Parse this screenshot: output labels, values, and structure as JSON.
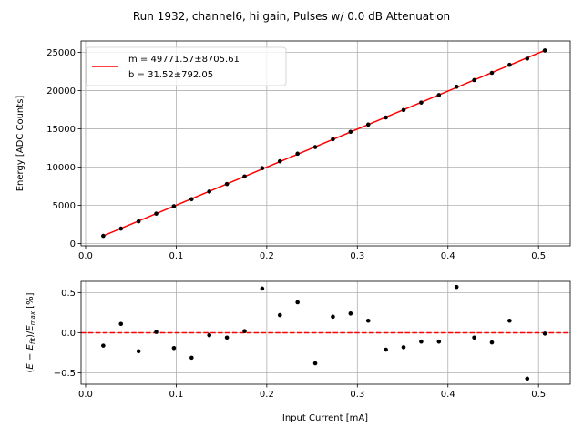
{
  "chart_data": [
    {
      "type": "scatter",
      "title": "Run 1932, channel6, hi gain, Pulses w/ 0.0 dB Attenuation",
      "xlabel": "",
      "ylabel": "Energy [ADC Counts]",
      "xlim": [
        -0.005,
        0.535
      ],
      "ylim": [
        -300,
        26500
      ],
      "xticks": [
        0.0,
        0.1,
        0.2,
        0.3,
        0.4,
        0.5
      ],
      "xtick_labels": [
        "0.0",
        "0.1",
        "0.2",
        "0.3",
        "0.4",
        "0.5"
      ],
      "yticks": [
        0,
        5000,
        10000,
        15000,
        20000,
        25000
      ],
      "ytick_labels": [
        "0",
        "5000",
        "10000",
        "15000",
        "20000",
        "25000"
      ],
      "grid": true,
      "legend_position": "top-left",
      "series": [
        {
          "name": "",
          "style": "points",
          "color": "#000000",
          "x": [
            0.0195,
            0.039,
            0.0585,
            0.078,
            0.0975,
            0.117,
            0.1365,
            0.156,
            0.1755,
            0.195,
            0.2145,
            0.234,
            0.2535,
            0.273,
            0.2925,
            0.312,
            0.3315,
            0.351,
            0.3705,
            0.39,
            0.4095,
            0.429,
            0.4485,
            0.468,
            0.4875,
            0.507
          ],
          "y": [
            1000,
            1950,
            2900,
            3910,
            4880,
            5800,
            6800,
            7780,
            8780,
            9860,
            10760,
            11750,
            12620,
            13650,
            14620,
            15560,
            16490,
            17470,
            18440,
            19420,
            20510,
            21380,
            22330,
            23380,
            24190,
            25260
          ]
        },
        {
          "name": "m = 49771.57±8705.61\nb = 31.52±792.05",
          "style": "line",
          "color": "#ff0000",
          "x": [
            0.0195,
            0.507
          ],
          "y": [
            1002,
            25266
          ]
        }
      ],
      "legend": [
        {
          "line1": "m = 49771.57±8705.61",
          "line2": "b = 31.52±792.05",
          "color": "#ff0000"
        }
      ]
    },
    {
      "type": "scatter",
      "title": "",
      "xlabel": "Input Current [mA]",
      "ylabel": "(E − E_fit)/E_max [%]",
      "ylabel_parts": {
        "open": "(",
        "E1": "E",
        "minus": " − ",
        "E2": "E",
        "sub_fit": "fit",
        "close_slash": ")/",
        "E3": "E",
        "sub_max": "max",
        "unit": " [%]"
      },
      "xlim": [
        -0.005,
        0.535
      ],
      "ylim": [
        -0.64,
        0.64
      ],
      "xticks": [
        0.0,
        0.1,
        0.2,
        0.3,
        0.4,
        0.5
      ],
      "xtick_labels": [
        "0.0",
        "0.1",
        "0.2",
        "0.3",
        "0.4",
        "0.5"
      ],
      "yticks": [
        -0.5,
        0.0,
        0.5
      ],
      "ytick_labels": [
        "−0.5",
        "0.0",
        "0.5"
      ],
      "grid": true,
      "reference_line": {
        "y": 0.0,
        "color": "#ff0000",
        "style": "dashed"
      },
      "series": [
        {
          "name": "",
          "style": "points",
          "color": "#000000",
          "x": [
            0.0195,
            0.039,
            0.0585,
            0.078,
            0.0975,
            0.117,
            0.1365,
            0.156,
            0.1755,
            0.195,
            0.2145,
            0.234,
            0.2535,
            0.273,
            0.2925,
            0.312,
            0.3315,
            0.351,
            0.3705,
            0.39,
            0.4095,
            0.429,
            0.4485,
            0.468,
            0.4875,
            0.507
          ],
          "y": [
            -0.16,
            0.11,
            -0.23,
            0.01,
            -0.19,
            -0.31,
            -0.03,
            -0.06,
            0.02,
            0.55,
            0.22,
            0.38,
            -0.38,
            0.2,
            0.24,
            0.15,
            -0.21,
            -0.18,
            -0.11,
            -0.11,
            0.57,
            -0.06,
            -0.12,
            0.15,
            -0.57,
            -0.01
          ]
        }
      ]
    }
  ]
}
